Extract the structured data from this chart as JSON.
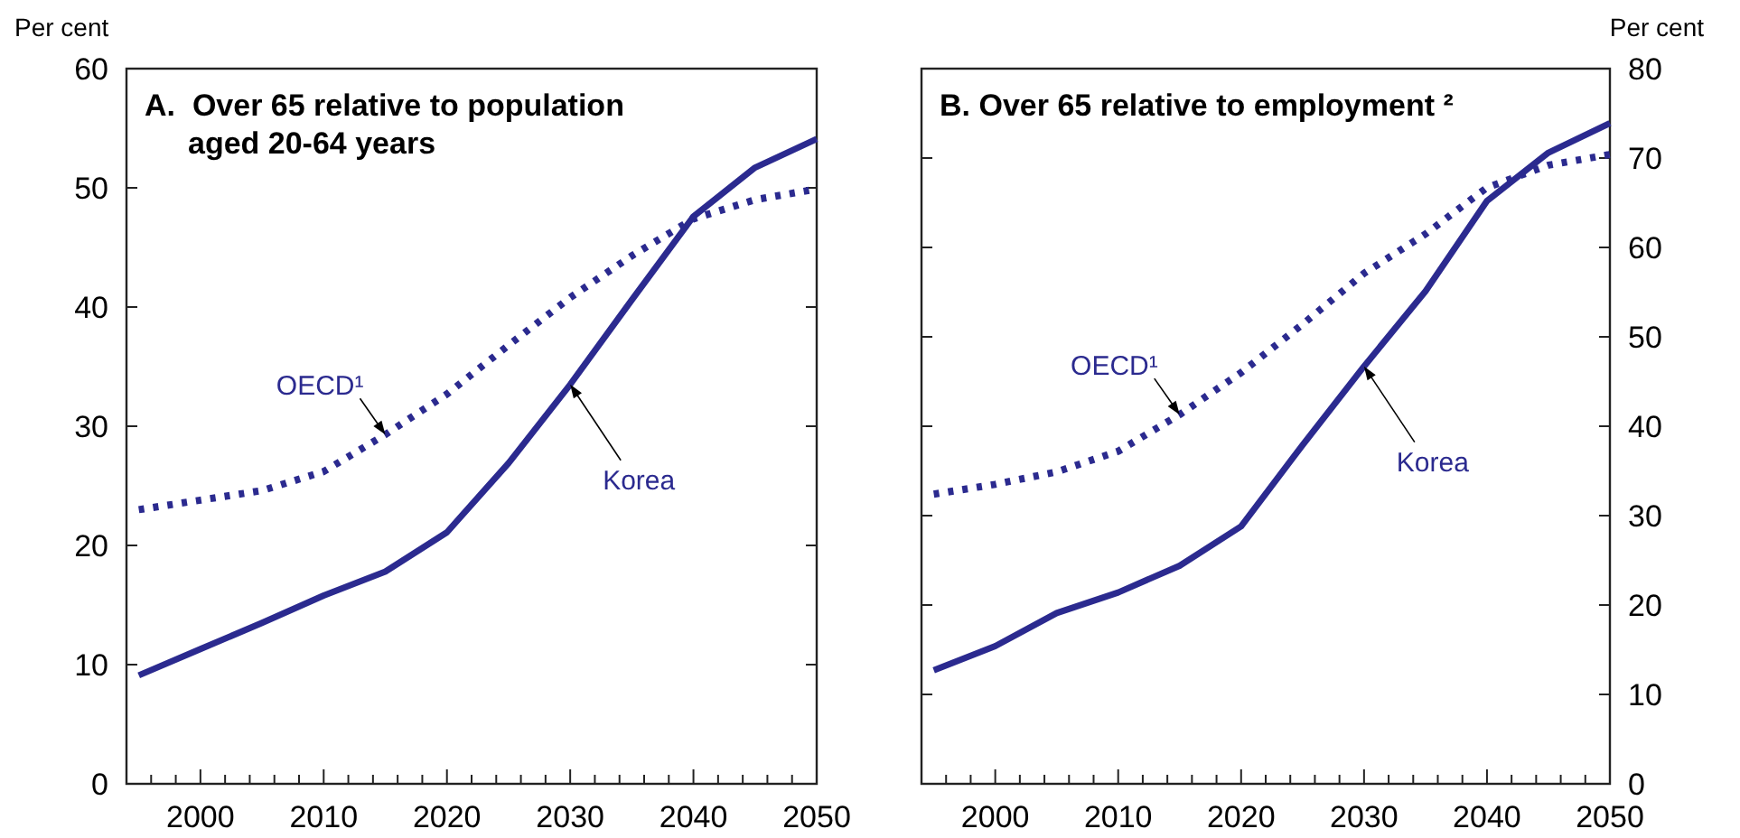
{
  "chart_data": [
    {
      "type": "line",
      "title": "A.  Over 65 relative to population aged 20-64 years",
      "ylabel": "Per cent",
      "x": [
        1995,
        2000,
        2005,
        2010,
        2015,
        2020,
        2025,
        2030,
        2035,
        2040,
        2045,
        2050
      ],
      "series": [
        {
          "name": "Korea",
          "color": "#2b2a8f",
          "line_style": "solid",
          "values": [
            9.1,
            11.3,
            13.5,
            15.8,
            17.8,
            21.1,
            26.9,
            33.5,
            40.6,
            47.6,
            51.7,
            54.1
          ]
        },
        {
          "name": "OECD¹",
          "color": "#2b2a8f",
          "line_style": "dotted",
          "values": [
            23.0,
            23.8,
            24.6,
            26.2,
            29.3,
            32.7,
            36.8,
            40.8,
            44.3,
            47.4,
            49.0,
            49.9
          ]
        }
      ],
      "xlim": [
        1994,
        2050
      ],
      "xticks": [
        {
          "value": 1996,
          "label": null
        },
        {
          "value": 1998,
          "label": null
        },
        2000,
        {
          "value": 2002,
          "label": null
        },
        {
          "value": 2004,
          "label": null
        },
        {
          "value": 2006,
          "label": null
        },
        {
          "value": 2008,
          "label": null
        },
        2010,
        {
          "value": 2012,
          "label": null
        },
        {
          "value": 2014,
          "label": null
        },
        {
          "value": 2016,
          "label": null
        },
        {
          "value": 2018,
          "label": null
        },
        2020,
        {
          "value": 2022,
          "label": null
        },
        {
          "value": 2024,
          "label": null
        },
        {
          "value": 2026,
          "label": null
        },
        {
          "value": 2028,
          "label": null
        },
        2030,
        {
          "value": 2032,
          "label": null
        },
        {
          "value": 2034,
          "label": null
        },
        {
          "value": 2036,
          "label": null
        },
        {
          "value": 2038,
          "label": null
        },
        2040,
        {
          "value": 2042,
          "label": null
        },
        {
          "value": 2044,
          "label": null
        },
        {
          "value": 2046,
          "label": null
        },
        {
          "value": 2048,
          "label": null
        },
        2050
      ],
      "ylim": [
        0,
        60
      ],
      "yticks": [
        0,
        10,
        20,
        30,
        40,
        50,
        60
      ],
      "grid": false
    },
    {
      "type": "line",
      "title": "B. Over 65 relative to employment ²",
      "y2label": "Per cent",
      "x": [
        1995,
        2000,
        2005,
        2010,
        2015,
        2020,
        2025,
        2030,
        2035,
        2040,
        2045,
        2050
      ],
      "series": [
        {
          "name": "Korea",
          "color": "#2b2a8f",
          "line_style": "solid",
          "axis": "y2",
          "values": [
            12.7,
            15.4,
            19.1,
            21.4,
            24.4,
            28.8,
            37.9,
            46.7,
            55.1,
            65.2,
            70.6,
            73.9
          ]
        },
        {
          "name": "OECD¹",
          "color": "#2b2a8f",
          "line_style": "dotted",
          "axis": "y2",
          "values": [
            32.4,
            33.5,
            34.9,
            37.2,
            41.3,
            46.0,
            51.4,
            57.1,
            61.5,
            66.7,
            69.2,
            70.4
          ]
        }
      ],
      "xlim": [
        1994,
        2050
      ],
      "xticks": [
        {
          "value": 1996,
          "label": null
        },
        {
          "value": 1998,
          "label": null
        },
        2000,
        {
          "value": 2002,
          "label": null
        },
        {
          "value": 2004,
          "label": null
        },
        {
          "value": 2006,
          "label": null
        },
        {
          "value": 2008,
          "label": null
        },
        2010,
        {
          "value": 2012,
          "label": null
        },
        {
          "value": 2014,
          "label": null
        },
        {
          "value": 2016,
          "label": null
        },
        {
          "value": 2018,
          "label": null
        },
        2020,
        {
          "value": 2022,
          "label": null
        },
        {
          "value": 2024,
          "label": null
        },
        {
          "value": 2026,
          "label": null
        },
        {
          "value": 2028,
          "label": null
        },
        2030,
        {
          "value": 2032,
          "label": null
        },
        {
          "value": 2034,
          "label": null
        },
        {
          "value": 2036,
          "label": null
        },
        {
          "value": 2038,
          "label": null
        },
        2040,
        {
          "value": 2042,
          "label": null
        },
        {
          "value": 2044,
          "label": null
        },
        {
          "value": 2046,
          "label": null
        },
        {
          "value": 2048,
          "label": null
        },
        2050
      ],
      "y2lim": [
        0,
        80
      ],
      "y2ticks": [
        0,
        10,
        20,
        30,
        40,
        50,
        60,
        70,
        80
      ],
      "grid": false
    }
  ]
}
